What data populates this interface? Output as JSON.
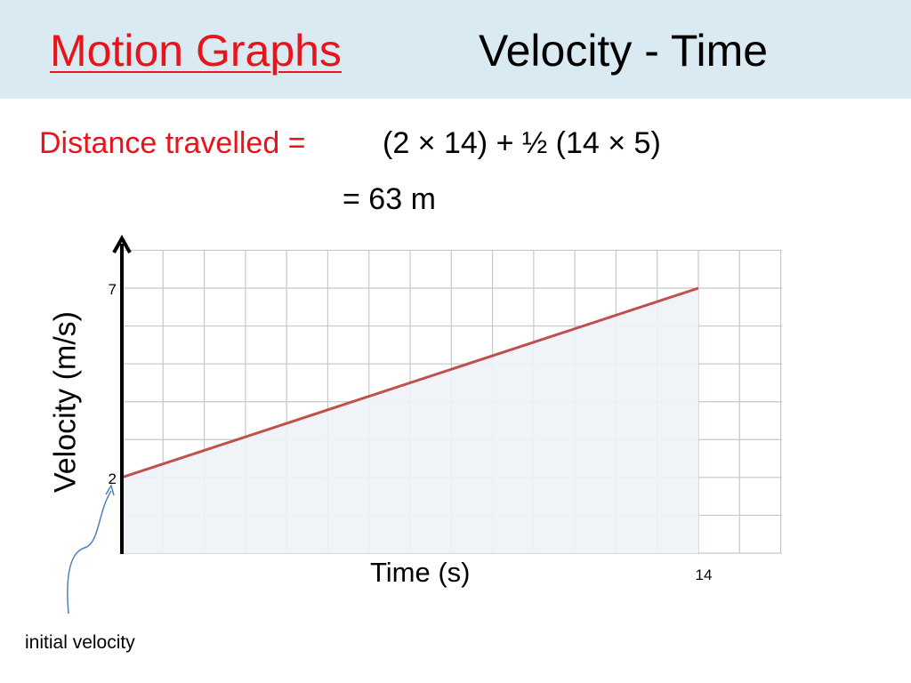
{
  "header": {
    "title": "Motion Graphs",
    "subtitle": "Velocity - Time"
  },
  "equation": {
    "label": "Distance travelled =",
    "expression": "(2 × 14) + ½ (14 × 5)",
    "result": "=  63 m"
  },
  "annotation": {
    "text": "initial velocity"
  },
  "colors": {
    "title": "#e8141b",
    "header_bg": "#daeaf2",
    "line": "#c0504d",
    "fill": "#eef3f8",
    "grid": "#c8c8c8",
    "arrow": "#4f81bd"
  },
  "chart_data": {
    "type": "line",
    "title": "",
    "xlabel": "Time (s)",
    "ylabel": "Velocity  (m/s)",
    "xlim": [
      0,
      14
    ],
    "ylim": [
      0,
      7
    ],
    "grid": true,
    "area_fill": true,
    "x": [
      0,
      14
    ],
    "series": [
      {
        "values": [
          2,
          7
        ]
      }
    ],
    "y_tick_labels": [
      {
        "value": 7,
        "label": "7"
      },
      {
        "value": 2,
        "label": "2"
      }
    ],
    "x_tick_labels": [
      {
        "value": 14,
        "label": "14"
      }
    ]
  }
}
